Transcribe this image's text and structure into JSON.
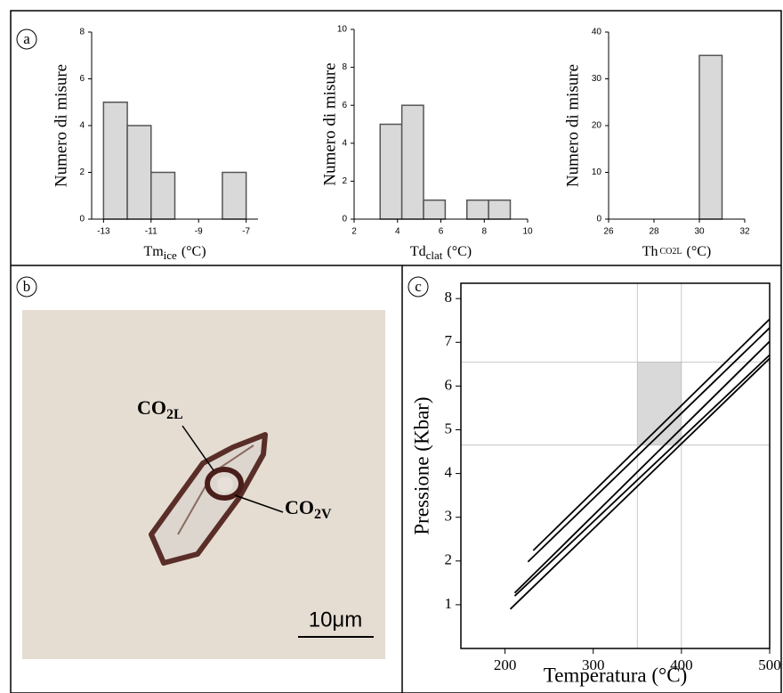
{
  "panels": [
    "a",
    "b",
    "c"
  ],
  "photo": {
    "labels": [
      {
        "text": "CO",
        "sub": "2L"
      },
      {
        "text": "CO",
        "sub": "2V"
      }
    ],
    "scale_bar": "10μm"
  },
  "chart_data": [
    {
      "type": "histogram",
      "ylabel": "Numero di misure",
      "xlabel": [
        {
          "text": "Tm"
        },
        {
          "text": "ice",
          "style": "sub"
        },
        {
          "text": "(°C)"
        }
      ],
      "bins": [
        -13,
        -12,
        -11,
        -10,
        -9,
        -8,
        -7
      ],
      "values": [
        5,
        4,
        2,
        0,
        0,
        2
      ],
      "color": "#d9d9d9",
      "xlim": [
        -13.5,
        -6.5
      ],
      "xticks": [
        -13,
        -11,
        -9,
        -7
      ],
      "ylim": [
        0,
        8
      ],
      "yticks": [
        0,
        2,
        4,
        6,
        8
      ]
    },
    {
      "type": "histogram",
      "ylabel": "Numero di misure",
      "xlabel": [
        {
          "text": "Td"
        },
        {
          "text": "clat",
          "style": "sub"
        },
        {
          "text": "(°C)"
        }
      ],
      "bins": [
        3.2,
        4.2,
        5.2,
        6.2,
        7.2,
        8.2,
        9.2
      ],
      "values": [
        5,
        6,
        1,
        0,
        1,
        1
      ],
      "color": "#d9d9d9",
      "xlim": [
        2,
        10
      ],
      "xticks": [
        2,
        4,
        6,
        8,
        10
      ],
      "ylim": [
        0,
        10
      ],
      "yticks": [
        0,
        2,
        4,
        6,
        8,
        10
      ]
    },
    {
      "type": "histogram",
      "ylabel": "Numero di misure",
      "xlabel": [
        {
          "text": "Th"
        },
        {
          "text": "CO2L",
          "style": "small"
        },
        {
          "text": "(°C)"
        }
      ],
      "bins": [
        30,
        31
      ],
      "values": [
        35
      ],
      "color": "#d9d9d9",
      "xlim": [
        26,
        32
      ],
      "xticks": [
        26,
        28,
        30,
        32
      ],
      "ylim": [
        0,
        40
      ],
      "yticks": [
        0,
        10,
        20,
        30,
        40
      ]
    },
    {
      "type": "line",
      "xlabel": "Temperatura (°C)",
      "ylabel": "Pressione (Kbar)",
      "series": [
        {
          "color": "#000000",
          "x": [
            232,
            500
          ],
          "values": [
            2.24,
            7.53
          ]
        },
        {
          "color": "#000000",
          "x": [
            226,
            500
          ],
          "values": [
            1.98,
            7.33
          ]
        },
        {
          "color": "#000000",
          "x": [
            211,
            500
          ],
          "values": [
            1.27,
            7.02
          ]
        },
        {
          "color": "#000000",
          "x": [
            211,
            500
          ],
          "values": [
            1.2,
            6.71
          ]
        },
        {
          "color": "#000000",
          "x": [
            206,
            500
          ],
          "values": [
            0.9,
            6.63
          ]
        }
      ],
      "region": {
        "x": [
          350,
          400
        ],
        "y": [
          4.65,
          6.55
        ],
        "color": "#d9d9d9"
      },
      "xlim": [
        150,
        500
      ],
      "xticks": [
        200,
        300,
        400,
        500
      ],
      "ylim": [
        0,
        8.35
      ],
      "yticks": [
        1,
        2,
        3,
        4,
        5,
        6,
        7,
        8
      ]
    }
  ]
}
